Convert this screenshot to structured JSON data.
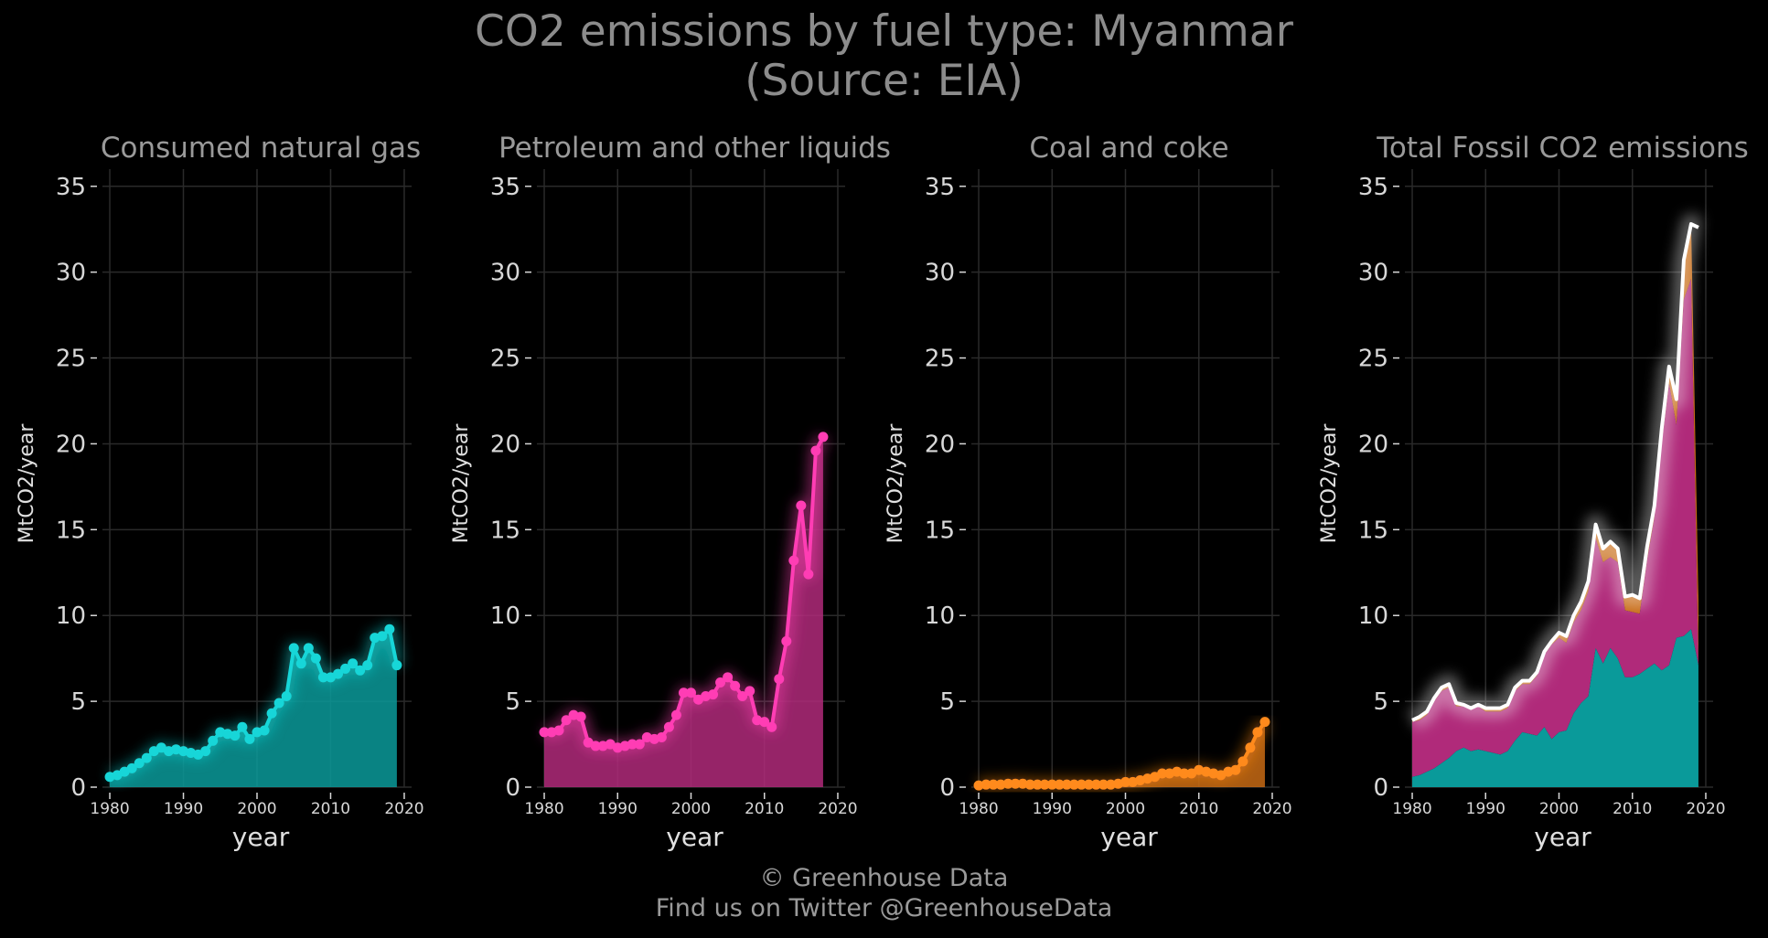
{
  "title_line1": "CO2 emissions by fuel type: Myanmar",
  "title_line2": "(Source: EIA)",
  "footer_line1": "© Greenhouse Data",
  "footer_line2": "Find us on Twitter @GreenhouseData",
  "colors": {
    "background": "#000000",
    "grid": "#2a2a2a",
    "gas": "#17d6d8",
    "gas_fill": "#0a9a9a",
    "oil": "#ff3db4",
    "oil_fill": "#b02a7a",
    "coal": "#ff8a1c",
    "coal_fill": "#c76a14",
    "total_line": "#ffffff",
    "subtitle": "#9a9a9a",
    "tick": "#d8d8d8"
  },
  "chart_data": [
    {
      "type": "area",
      "title": "Consumed natural gas",
      "xlabel": "year",
      "ylabel": "MtCO2/year",
      "xlim": [
        1979,
        2021
      ],
      "ylim": [
        0,
        36
      ],
      "xticks": [
        1980,
        1990,
        2000,
        2010,
        2020
      ],
      "yticks": [
        0,
        5,
        10,
        15,
        20,
        25,
        30,
        35
      ],
      "grid": true,
      "series": [
        {
          "x": [
            1980,
            1981,
            1982,
            1983,
            1984,
            1985,
            1986,
            1987,
            1988,
            1989,
            1990,
            1991,
            1992,
            1993,
            1994,
            1995,
            1996,
            1997,
            1998,
            1999,
            2000,
            2001,
            2002,
            2003,
            2004,
            2005,
            2006,
            2007,
            2008,
            2009,
            2010,
            2011,
            2012,
            2013,
            2014,
            2015,
            2016,
            2017,
            2018,
            2019
          ],
          "values": [
            0.6,
            0.7,
            0.9,
            1.1,
            1.4,
            1.7,
            2.1,
            2.3,
            2.1,
            2.2,
            2.1,
            2.0,
            1.9,
            2.1,
            2.7,
            3.2,
            3.1,
            3.0,
            3.5,
            2.8,
            3.2,
            3.3,
            4.3,
            4.9,
            5.3,
            8.1,
            7.2,
            8.1,
            7.5,
            6.4,
            6.4,
            6.6,
            6.9,
            7.2,
            6.8,
            7.1,
            8.7,
            8.8,
            9.2,
            7.1
          ]
        }
      ]
    },
    {
      "type": "area",
      "title": "Petroleum and other liquids",
      "xlabel": "year",
      "ylabel": "MtCO2/year",
      "xlim": [
        1979,
        2021
      ],
      "ylim": [
        0,
        36
      ],
      "xticks": [
        1980,
        1990,
        2000,
        2010,
        2020
      ],
      "yticks": [
        0,
        5,
        10,
        15,
        20,
        25,
        30,
        35
      ],
      "grid": true,
      "series": [
        {
          "x": [
            1980,
            1981,
            1982,
            1983,
            1984,
            1985,
            1986,
            1987,
            1988,
            1989,
            1990,
            1991,
            1992,
            1993,
            1994,
            1995,
            1996,
            1997,
            1998,
            1999,
            2000,
            2001,
            2002,
            2003,
            2004,
            2005,
            2006,
            2007,
            2008,
            2009,
            2010,
            2011,
            2012,
            2013,
            2014,
            2015,
            2016,
            2017,
            2018
          ],
          "values": [
            3.2,
            3.2,
            3.3,
            3.9,
            4.2,
            4.1,
            2.6,
            2.4,
            2.4,
            2.5,
            2.3,
            2.4,
            2.5,
            2.5,
            2.9,
            2.8,
            2.9,
            3.5,
            4.2,
            5.5,
            5.5,
            5.1,
            5.3,
            5.4,
            6.1,
            6.4,
            5.9,
            5.3,
            5.6,
            3.9,
            3.8,
            3.5,
            6.3,
            8.5,
            13.2,
            16.4,
            12.4,
            19.6,
            20.4
          ]
        }
      ]
    },
    {
      "type": "area",
      "title": "Coal and coke",
      "xlabel": "year",
      "ylabel": "MtCO2/year",
      "xlim": [
        1979,
        2021
      ],
      "ylim": [
        0,
        36
      ],
      "xticks": [
        1980,
        1990,
        2000,
        2010,
        2020
      ],
      "yticks": [
        0,
        5,
        10,
        15,
        20,
        25,
        30,
        35
      ],
      "grid": true,
      "series": [
        {
          "x": [
            1980,
            1981,
            1982,
            1983,
            1984,
            1985,
            1986,
            1987,
            1988,
            1989,
            1990,
            1991,
            1992,
            1993,
            1994,
            1995,
            1996,
            1997,
            1998,
            1999,
            2000,
            2001,
            2002,
            2003,
            2004,
            2005,
            2006,
            2007,
            2008,
            2009,
            2010,
            2011,
            2012,
            2013,
            2014,
            2015,
            2016,
            2017,
            2018,
            2019
          ],
          "values": [
            0.1,
            0.15,
            0.15,
            0.15,
            0.2,
            0.2,
            0.2,
            0.15,
            0.15,
            0.15,
            0.15,
            0.15,
            0.15,
            0.15,
            0.15,
            0.15,
            0.15,
            0.15,
            0.15,
            0.2,
            0.3,
            0.3,
            0.4,
            0.5,
            0.6,
            0.8,
            0.8,
            0.9,
            0.8,
            0.8,
            1.0,
            0.9,
            0.8,
            0.7,
            0.9,
            1.0,
            1.5,
            2.3,
            3.2,
            3.8
          ]
        }
      ]
    },
    {
      "type": "area",
      "title": "Total Fossil CO2 emissions",
      "xlabel": "year",
      "ylabel": "MtCO2/year",
      "xlim": [
        1979,
        2021
      ],
      "ylim": [
        0,
        36
      ],
      "xticks": [
        1980,
        1990,
        2000,
        2010,
        2020
      ],
      "yticks": [
        0,
        5,
        10,
        15,
        20,
        25,
        30,
        35
      ],
      "grid": true,
      "stacked": true,
      "series": [
        {
          "kind": "gas",
          "x": [
            1980,
            1981,
            1982,
            1983,
            1984,
            1985,
            1986,
            1987,
            1988,
            1989,
            1990,
            1991,
            1992,
            1993,
            1994,
            1995,
            1996,
            1997,
            1998,
            1999,
            2000,
            2001,
            2002,
            2003,
            2004,
            2005,
            2006,
            2007,
            2008,
            2009,
            2010,
            2011,
            2012,
            2013,
            2014,
            2015,
            2016,
            2017,
            2018,
            2019
          ],
          "values": [
            0.6,
            0.7,
            0.9,
            1.1,
            1.4,
            1.7,
            2.1,
            2.3,
            2.1,
            2.2,
            2.1,
            2.0,
            1.9,
            2.1,
            2.7,
            3.2,
            3.1,
            3.0,
            3.5,
            2.8,
            3.2,
            3.3,
            4.3,
            4.9,
            5.3,
            8.1,
            7.2,
            8.1,
            7.5,
            6.4,
            6.4,
            6.6,
            6.9,
            7.2,
            6.8,
            7.1,
            8.7,
            8.8,
            9.2,
            7.1
          ]
        },
        {
          "kind": "oil",
          "x": [
            1980,
            1981,
            1982,
            1983,
            1984,
            1985,
            1986,
            1987,
            1988,
            1989,
            1990,
            1991,
            1992,
            1993,
            1994,
            1995,
            1996,
            1997,
            1998,
            1999,
            2000,
            2001,
            2002,
            2003,
            2004,
            2005,
            2006,
            2007,
            2008,
            2009,
            2010,
            2011,
            2012,
            2013,
            2014,
            2015,
            2016,
            2017,
            2018
          ],
          "values": [
            3.2,
            3.2,
            3.3,
            3.9,
            4.2,
            4.1,
            2.6,
            2.4,
            2.4,
            2.5,
            2.3,
            2.4,
            2.5,
            2.5,
            2.9,
            2.8,
            2.9,
            3.5,
            4.2,
            5.5,
            5.5,
            5.1,
            5.3,
            5.4,
            6.1,
            6.4,
            5.9,
            5.3,
            5.6,
            3.9,
            3.8,
            3.5,
            6.3,
            8.5,
            13.2,
            16.4,
            12.4,
            19.6,
            20.4
          ]
        },
        {
          "kind": "coal",
          "x": [
            1980,
            1981,
            1982,
            1983,
            1984,
            1985,
            1986,
            1987,
            1988,
            1989,
            1990,
            1991,
            1992,
            1993,
            1994,
            1995,
            1996,
            1997,
            1998,
            1999,
            2000,
            2001,
            2002,
            2003,
            2004,
            2005,
            2006,
            2007,
            2008,
            2009,
            2010,
            2011,
            2012,
            2013,
            2014,
            2015,
            2016,
            2017,
            2018,
            2019
          ],
          "values": [
            0.1,
            0.15,
            0.15,
            0.15,
            0.2,
            0.2,
            0.2,
            0.15,
            0.15,
            0.15,
            0.15,
            0.15,
            0.15,
            0.15,
            0.15,
            0.15,
            0.15,
            0.15,
            0.15,
            0.2,
            0.3,
            0.3,
            0.4,
            0.5,
            0.6,
            0.8,
            0.8,
            0.9,
            0.8,
            0.8,
            1.0,
            0.9,
            0.8,
            0.7,
            0.9,
            1.0,
            1.5,
            2.3,
            3.2,
            3.8
          ]
        },
        {
          "kind": "total",
          "x": [
            1980,
            1981,
            1982,
            1983,
            1984,
            1985,
            1986,
            1987,
            1988,
            1989,
            1990,
            1991,
            1992,
            1993,
            1994,
            1995,
            1996,
            1997,
            1998,
            1999,
            2000,
            2001,
            2002,
            2003,
            2004,
            2005,
            2006,
            2007,
            2008,
            2009,
            2010,
            2011,
            2012,
            2013,
            2014,
            2015,
            2016,
            2017,
            2018,
            2019
          ],
          "values": [
            3.9,
            4.1,
            4.4,
            5.2,
            5.8,
            6.0,
            4.9,
            4.8,
            4.6,
            4.8,
            4.6,
            4.6,
            4.6,
            4.8,
            5.8,
            6.2,
            6.2,
            6.7,
            7.9,
            8.5,
            9.0,
            8.8,
            10.0,
            10.8,
            12.0,
            15.3,
            13.9,
            14.3,
            13.9,
            11.1,
            11.2,
            11.0,
            14.0,
            16.4,
            20.9,
            24.5,
            22.6,
            30.7,
            32.8,
            32.6
          ]
        }
      ]
    }
  ]
}
